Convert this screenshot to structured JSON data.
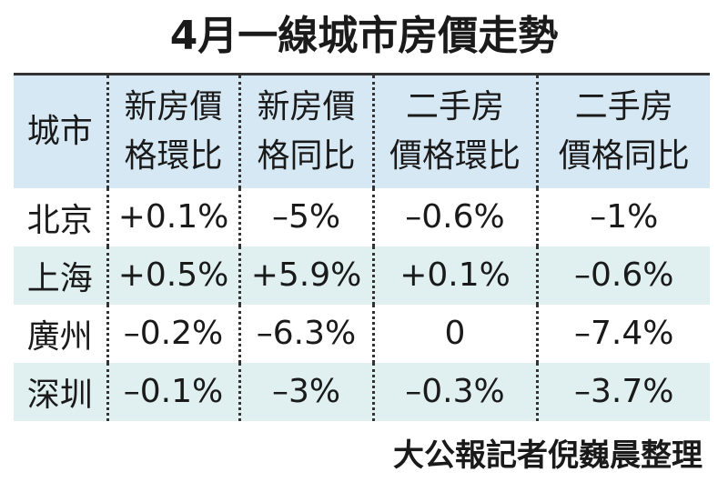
{
  "title": "4月一線城市房價走勢",
  "table": {
    "header": [
      [
        "城市"
      ],
      [
        "新房價",
        "格環比"
      ],
      [
        "新房價",
        "格同比"
      ],
      [
        "二手房",
        "價格環比"
      ],
      [
        "二手房",
        "價格同比"
      ]
    ],
    "rows": [
      [
        "北京",
        "+0.1%",
        "–5%",
        "–0.6%",
        "–1%"
      ],
      [
        "上海",
        "+0.5%",
        "+5.9%",
        "+0.1%",
        "–0.6%"
      ],
      [
        "廣州",
        "–0.2%",
        "–6.3%",
        "0",
        "–7.4%"
      ],
      [
        "深圳",
        "–0.1%",
        "–3%",
        "–0.3%",
        "–3.7%"
      ]
    ]
  },
  "source": "大公報記者倪巍晨整理"
}
